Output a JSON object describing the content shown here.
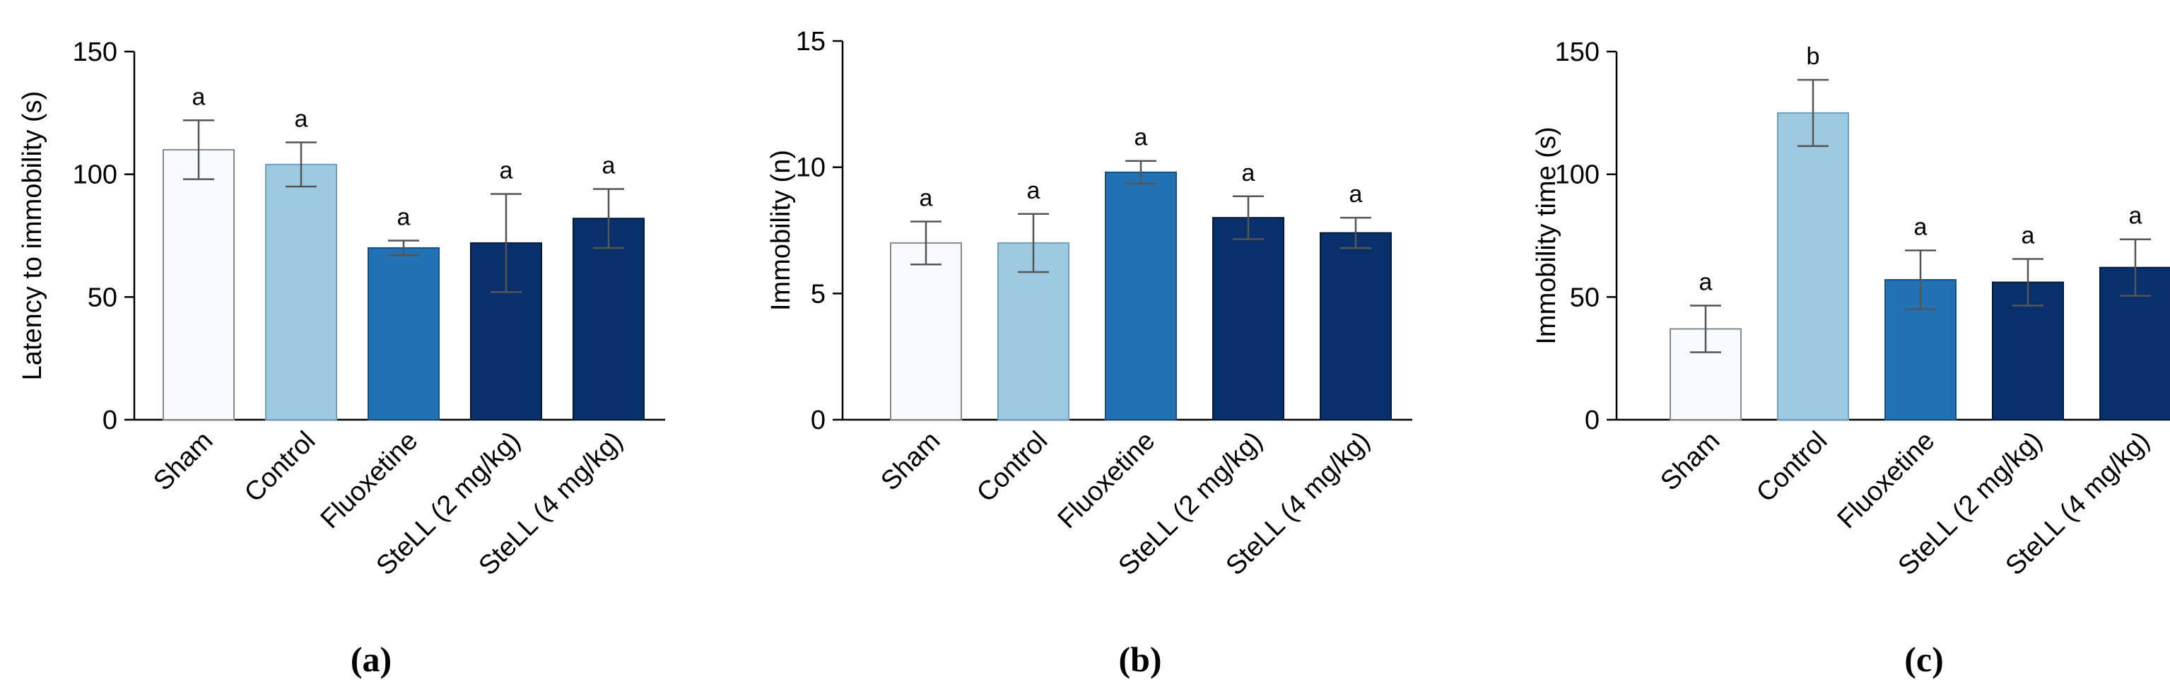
{
  "chart_data": [
    {
      "type": "bar",
      "panel_label": "(a)",
      "ylabel": "Latency to immobility (s)",
      "ylim": [
        0,
        150
      ],
      "yticks": [
        "0",
        "50",
        "100",
        "150"
      ],
      "categories": [
        "Sham",
        "Control",
        "Fluoxetine",
        "SteLL (2 mg/kg)",
        "SteLL (4 mg/kg)"
      ],
      "values": [
        110,
        104,
        70,
        72,
        82
      ],
      "errors": [
        12,
        9,
        3,
        20,
        12
      ],
      "significance": [
        "a",
        "a",
        "a",
        "a",
        "a"
      ]
    },
    {
      "type": "bar",
      "panel_label": "(b)",
      "ylabel": "Immobility (n)",
      "ylim": [
        0,
        15
      ],
      "yticks": [
        "0",
        "5",
        "10",
        "15"
      ],
      "categories": [
        "Sham",
        "Control",
        "Fluoxetine",
        "SteLL (2 mg/kg)",
        "SteLL (4 mg/kg)"
      ],
      "values": [
        7.0,
        7.0,
        9.8,
        8.0,
        7.4
      ],
      "errors": [
        0.85,
        1.15,
        0.45,
        0.85,
        0.6
      ],
      "significance": [
        "a",
        "a",
        "a",
        "a",
        "a"
      ]
    },
    {
      "type": "bar",
      "panel_label": "(c)",
      "ylabel": "Immobility time (s)",
      "ylim": [
        0,
        150
      ],
      "yticks": [
        "0",
        "50",
        "100",
        "150"
      ],
      "categories": [
        "Sham",
        "Control",
        "Fluoxetine",
        "SteLL (2 mg/kg)",
        "SteLL (4 mg/kg)"
      ],
      "values": [
        37,
        125,
        57,
        56,
        62
      ],
      "errors": [
        9.5,
        13.5,
        12,
        9.5,
        11.5
      ],
      "significance": [
        "a",
        "b",
        "a",
        "a",
        "a"
      ]
    }
  ],
  "colors": [
    "#f7fbff",
    "#9ecae1",
    "#2171b5",
    "#08306b",
    "#08306b"
  ]
}
